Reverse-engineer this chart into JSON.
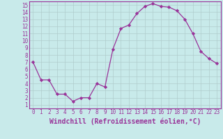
{
  "x": [
    0,
    1,
    2,
    3,
    4,
    5,
    6,
    7,
    8,
    9,
    10,
    11,
    12,
    13,
    14,
    15,
    16,
    17,
    18,
    19,
    20,
    21,
    22,
    23
  ],
  "y": [
    7,
    4.5,
    4.5,
    2.5,
    2.5,
    1.5,
    2.0,
    2.0,
    4.0,
    3.5,
    8.8,
    11.7,
    12.2,
    13.8,
    14.8,
    15.2,
    14.8,
    14.7,
    14.2,
    13.0,
    11.0,
    8.5,
    7.5,
    6.8
  ],
  "color": "#993399",
  "bg_color": "#c8eaea",
  "grid_color": "#b0cccc",
  "xlabel": "Windchill (Refroidissement éolien,°C)",
  "ylim_min": 0.5,
  "ylim_max": 15.5,
  "xlim_min": -0.5,
  "xlim_max": 23.5,
  "yticks": [
    1,
    2,
    3,
    4,
    5,
    6,
    7,
    8,
    9,
    10,
    11,
    12,
    13,
    14,
    15
  ],
  "xticks": [
    0,
    1,
    2,
    3,
    4,
    5,
    6,
    7,
    8,
    9,
    10,
    11,
    12,
    13,
    14,
    15,
    16,
    17,
    18,
    19,
    20,
    21,
    22,
    23
  ],
  "tick_fontsize": 5.5,
  "xlabel_fontsize": 7.0,
  "line_width": 0.9,
  "marker_size": 2.2
}
